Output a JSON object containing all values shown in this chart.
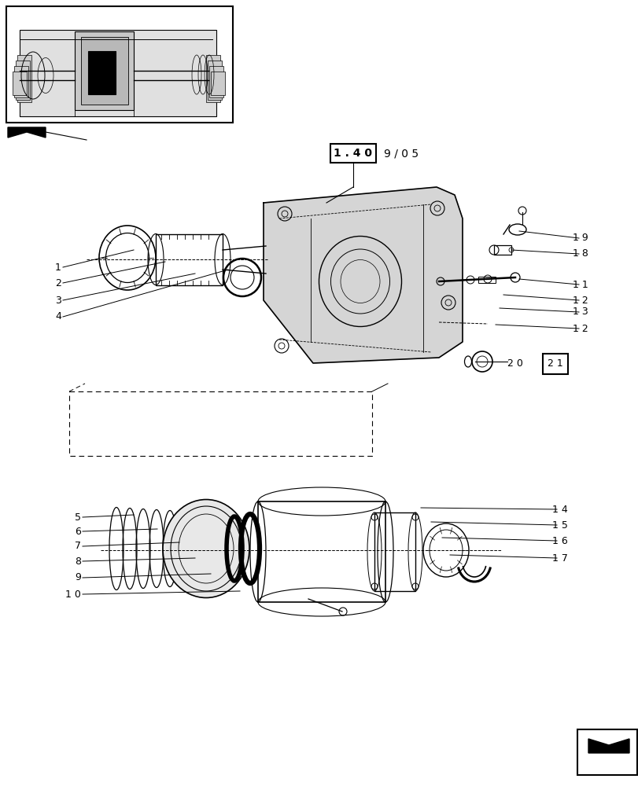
{
  "bg_color": "#ffffff",
  "line_color": "#000000",
  "fig_width": 8.12,
  "fig_height": 10.0,
  "dpi": 100,
  "page_ref_boxed": "1 . 4 0",
  "page_ref_rest": "9 / 0 5",
  "labels_upper_left": [
    "1",
    "2",
    "3",
    "4"
  ],
  "labels_right_upper": [
    "1 9",
    "1 8",
    "1 1",
    "1 2",
    "1 3",
    "1 2"
  ],
  "labels_lower_left": [
    "5",
    "6",
    "7",
    "8",
    "9",
    "1 0"
  ],
  "labels_right_lower": [
    "1 4",
    "1 5",
    "1 6",
    "1 7"
  ],
  "boxed_number": "2 1",
  "plain_number": "2 0"
}
